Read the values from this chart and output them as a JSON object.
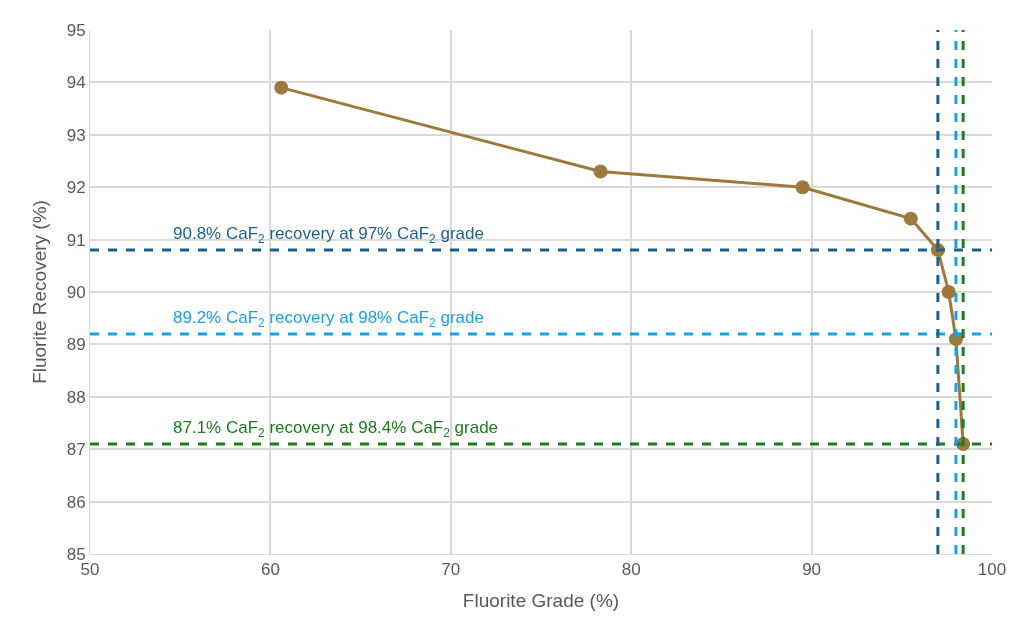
{
  "chart_data": {
    "type": "line",
    "xlabel": "Fluorite Grade (%)",
    "ylabel": "Fluorite Recovery (%)",
    "x": [
      60.6,
      78.3,
      89.5,
      95.5,
      97.0,
      97.6,
      98.0,
      98.4
    ],
    "series": [
      {
        "color": "#9c7a3c",
        "values": [
          93.9,
          92.3,
          92.0,
          91.4,
          90.8,
          90.0,
          89.1,
          87.1
        ]
      }
    ],
    "marker": "circle",
    "line_style": "solid",
    "grid": true,
    "legend": false,
    "xlim": [
      50,
      100
    ],
    "xticks": [
      50,
      60,
      70,
      80,
      90,
      100
    ],
    "ylim": [
      85,
      95
    ],
    "yticks": [
      85,
      86,
      87,
      88,
      89,
      90,
      91,
      92,
      93,
      94,
      95
    ],
    "ref_lines": [
      {
        "axis": "y",
        "value": 90.8,
        "label": "90.8% CaF$_{2}$ recovery at 97% CaF$_{2}$ grade",
        "color": "#1f5f8b",
        "line_style": "dashed"
      },
      {
        "axis": "y",
        "value": 89.2,
        "label": "89.2% CaF$_{2}$ recovery at 98% CaF$_{2}$ grade",
        "color": "#1ba1e2",
        "line_style": "dashed"
      },
      {
        "axis": "y",
        "value": 87.1,
        "label": "87.1% CaF$_{2}$ recovery at 98.4% CaF$_{2}$ grade",
        "color": "#1e7b1e",
        "line_style": "dashed"
      },
      {
        "axis": "x",
        "value": 97,
        "color": "#1f5f8b",
        "line_style": "dashed"
      },
      {
        "axis": "x",
        "value": 98,
        "color": "#1ba1e2",
        "line_style": "dashed"
      },
      {
        "axis": "x",
        "value": 98.4,
        "color": "#1e7b1e",
        "line_style": "dashed"
      }
    ]
  }
}
